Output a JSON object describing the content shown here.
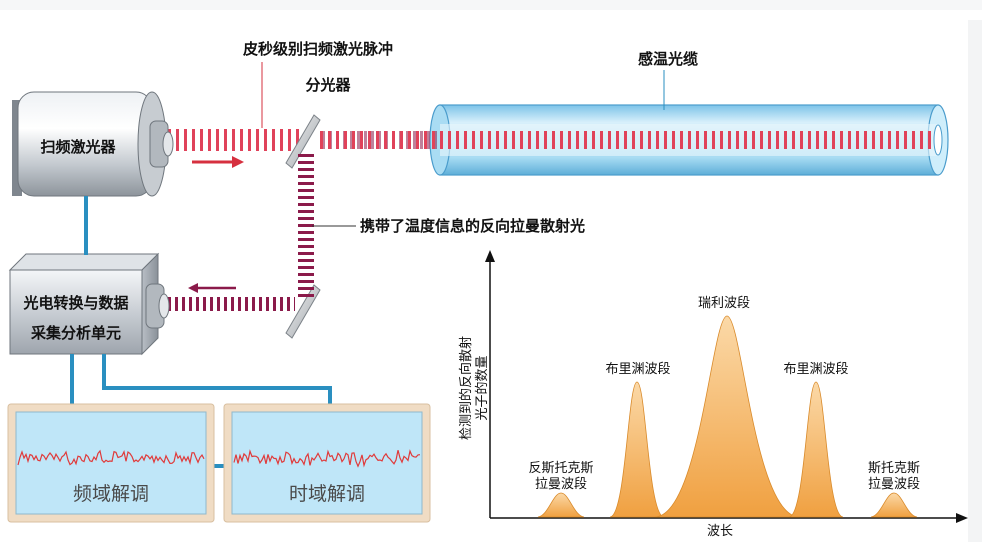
{
  "labels": {
    "pulse": "皮秒级别扫频激光脉冲",
    "cable": "感温光缆",
    "splitter": "分光器",
    "laser": "扫频激光器",
    "return": "携带了温度信息的反向拉曼散射光",
    "unit_line1": "光电转换与数据",
    "unit_line2": "采集分析单元",
    "freq_demod": "频域解调",
    "time_demod": "时域解调"
  },
  "spectrum": {
    "ylabel_line1": "检测到的反向散射",
    "ylabel_line2": "光子的数量",
    "xlabel": "波长",
    "peaks": {
      "rayleigh": "瑞利波段",
      "brillouin_left": "布里渊波段",
      "brillouin_right": "布里渊波段",
      "anti_stokes_line1": "反斯托克斯",
      "anti_stokes_line2": "拉曼波段",
      "stokes_line1": "斯托克斯",
      "stokes_line2": "拉曼波段"
    }
  },
  "colors": {
    "laser_pulse": "#e0425a",
    "raman_return": "#8b1a4a",
    "cable_blue": "#9fd3ee",
    "connector": "#2a8fc0",
    "screen_bg": "#bfe6f8",
    "screen_frame": "#f0dcc4",
    "waveform": "#e03a3a",
    "peak_fill": "#f0a040"
  },
  "chart_data": {
    "type": "area",
    "title": "",
    "xlabel": "波长",
    "ylabel": "检测到的反向散射光子的数量",
    "categories": [
      "反斯托克斯拉曼波段",
      "布里渊波段",
      "瑞利波段",
      "布里渊波段",
      "斯托克斯拉曼波段"
    ],
    "grid": false
  }
}
